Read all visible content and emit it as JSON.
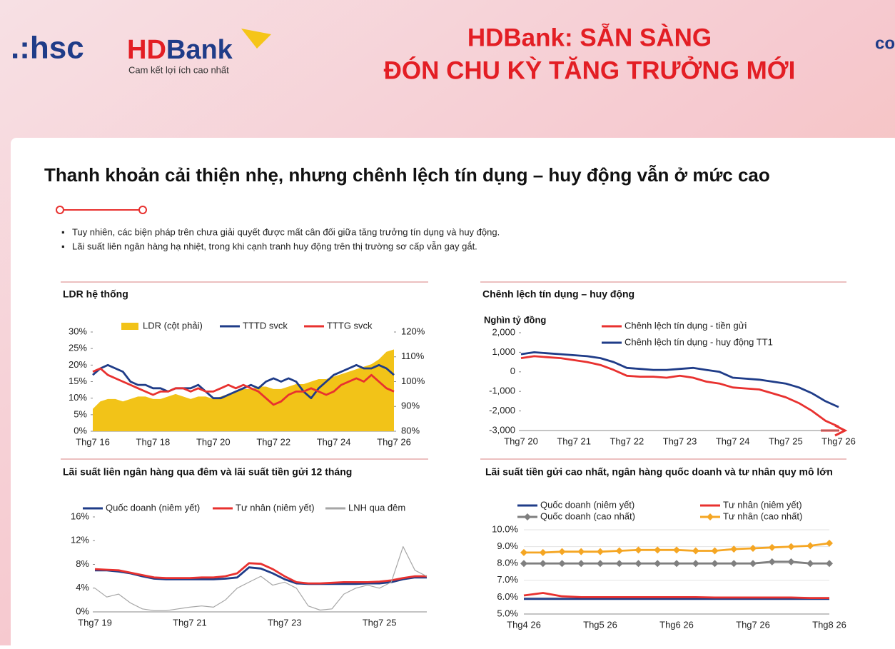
{
  "header": {
    "logo_hsc": ".:hsc",
    "logo_hd": "HD",
    "logo_bank": "Bank",
    "tagline": "Cam kết lợi ích cao nhất",
    "title_line1": "HDBank: SẴN SÀNG",
    "title_line2": "ĐÓN CHU KỲ TĂNG TRƯỞNG MỚI",
    "corner": "co"
  },
  "slide": {
    "title": "Thanh khoản cải thiện nhẹ, nhưng chênh lệch tín dụng – huy động vẫn ở mức cao",
    "bullets": [
      "Tuy nhiên, các biện pháp trên chưa giải quyết được mất cân đối giữa tăng trưởng tín dụng và huy động.",
      "Lãi suất liên ngân hàng hạ nhiệt, trong khi cạnh tranh huy động trên thị trường sơ cấp vẫn gay gắt."
    ]
  },
  "chart_data": [
    {
      "type": "combo",
      "title": "LDR hệ thống",
      "categories": [
        "Thg7 16",
        null,
        null,
        null,
        null,
        null,
        null,
        null,
        "Thg7 18",
        null,
        null,
        null,
        null,
        null,
        null,
        null,
        "Thg7 20",
        null,
        null,
        null,
        null,
        null,
        null,
        null,
        "Thg7 22",
        null,
        null,
        null,
        null,
        null,
        null,
        null,
        "Thg7 24",
        null,
        null,
        null,
        null,
        null,
        null,
        null,
        "Thg7 26"
      ],
      "ylim": [
        0,
        30
      ],
      "yticks": [
        {
          "value": 0,
          "label": "0%"
        },
        {
          "value": 5,
          "label": "5%"
        },
        {
          "value": 10,
          "label": "10%"
        },
        {
          "value": 15,
          "label": "15%"
        },
        {
          "value": 20,
          "label": "20%"
        },
        {
          "value": 25,
          "label": "25%"
        },
        {
          "value": 30,
          "label": "30%"
        }
      ],
      "y2lim": [
        80,
        120
      ],
      "y2ticks": [
        {
          "value": 80,
          "label": "80%"
        },
        {
          "value": 90,
          "label": "90%"
        },
        {
          "value": 100,
          "label": "100%"
        },
        {
          "value": 110,
          "label": "110%"
        },
        {
          "value": 120,
          "label": "120%"
        }
      ],
      "series": [
        {
          "name": "LDR (cột phải)",
          "type": "area",
          "axis": "y2",
          "color": "#f2c318",
          "values": [
            89,
            92,
            93,
            93,
            92,
            93,
            94,
            94,
            93,
            93,
            94,
            95,
            94,
            93,
            94,
            94,
            93,
            94,
            95,
            96,
            97,
            97,
            98,
            98,
            97,
            97,
            98,
            99,
            99,
            100,
            101,
            101,
            102,
            103,
            104,
            105,
            106,
            107,
            109,
            112,
            113
          ]
        },
        {
          "name": "TTTD svck",
          "type": "line",
          "color": "#1f3c88",
          "values": [
            17,
            19,
            20,
            19,
            18,
            15,
            14,
            14,
            13,
            13,
            12,
            13,
            13,
            13,
            14,
            12,
            10,
            10,
            11,
            12,
            13,
            14,
            13,
            15,
            16,
            15,
            16,
            15,
            12,
            10,
            13,
            15,
            17,
            18,
            19,
            20,
            19,
            19,
            20,
            19,
            17
          ]
        },
        {
          "name": "TTTG svck",
          "type": "line",
          "color": "#e8312f",
          "values": [
            18,
            19,
            17,
            16,
            15,
            14,
            13,
            12,
            11,
            12,
            12,
            13,
            13,
            12,
            13,
            12,
            12,
            13,
            14,
            13,
            14,
            13,
            12,
            10,
            8,
            9,
            11,
            12,
            12,
            13,
            12,
            11,
            12,
            14,
            15,
            16,
            15,
            17,
            15,
            13,
            12
          ]
        }
      ]
    },
    {
      "type": "line",
      "title": "Chênh lệch tín dụng – huy động",
      "ylabel": "Nghìn tỷ đồng",
      "categories": [
        "Thg7 20",
        null,
        null,
        null,
        "Thg7 21",
        null,
        null,
        null,
        "Thg7 22",
        null,
        null,
        null,
        "Thg7 23",
        null,
        null,
        null,
        "Thg7 24",
        null,
        null,
        null,
        "Thg7 25",
        null,
        null,
        null,
        "Thg7 26"
      ],
      "ylim": [
        -3000,
        2000
      ],
      "yticks": [
        {
          "value": -3000,
          "label": "-3,000"
        },
        {
          "value": -2000,
          "label": "-2,000"
        },
        {
          "value": -1000,
          "label": "-1,000"
        },
        0,
        {
          "value": 1000,
          "label": "1,000"
        },
        {
          "value": 2000,
          "label": "2,000"
        }
      ],
      "series": [
        {
          "name": "Chênh lệch tín dụng - tiền gửi",
          "color": "#e8312f",
          "values": [
            700,
            800,
            750,
            700,
            600,
            500,
            350,
            100,
            -200,
            -250,
            -250,
            -300,
            -200,
            -300,
            -500,
            -600,
            -800,
            -850,
            -900,
            -1100,
            -1300,
            -1600,
            -2000,
            -2500,
            -2800
          ]
        },
        {
          "name": "Chênh lệch tín dụng - huy động TT1",
          "color": "#1f3c88",
          "values": [
            900,
            1000,
            950,
            900,
            850,
            800,
            700,
            500,
            200,
            150,
            100,
            100,
            150,
            200,
            100,
            0,
            -300,
            -350,
            -400,
            -500,
            -600,
            -800,
            -1100,
            -1500,
            -1800
          ]
        }
      ]
    },
    {
      "type": "line",
      "title": "Lãi suất liên ngân hàng qua đêm và lãi suất tiền gửi 12 tháng",
      "categories": [
        "Thg7 19",
        null,
        null,
        null,
        null,
        null,
        null,
        null,
        "Thg7 21",
        null,
        null,
        null,
        null,
        null,
        null,
        null,
        "Thg7 23",
        null,
        null,
        null,
        null,
        null,
        null,
        null,
        "Thg7 25",
        null,
        null,
        null,
        null
      ],
      "ylim": [
        0,
        16
      ],
      "yticks": [
        {
          "value": 0,
          "label": "0%"
        },
        {
          "value": 4,
          "label": "4%"
        },
        {
          "value": 8,
          "label": "8%"
        },
        {
          "value": 12,
          "label": "12%"
        },
        {
          "value": 16,
          "label": "16%"
        }
      ],
      "series": [
        {
          "name": "Quốc doanh (niêm yết)",
          "color": "#1f3c88",
          "values": [
            7,
            7,
            6.8,
            6.5,
            6,
            5.6,
            5.5,
            5.5,
            5.5,
            5.5,
            5.5,
            5.6,
            5.8,
            7.5,
            7.3,
            6.5,
            5.5,
            4.8,
            4.7,
            4.7,
            4.7,
            4.7,
            4.7,
            4.8,
            4.8,
            5,
            5.5,
            5.8,
            5.8
          ]
        },
        {
          "name": "Tư nhân (niêm yết)",
          "color": "#e8312f",
          "values": [
            7.2,
            7.1,
            7,
            6.6,
            6.2,
            5.8,
            5.7,
            5.7,
            5.7,
            5.8,
            5.8,
            6,
            6.5,
            8.2,
            8.1,
            7.2,
            6,
            5,
            4.8,
            4.8,
            4.9,
            5,
            5,
            5,
            5.1,
            5.3,
            5.7,
            6,
            6
          ]
        },
        {
          "name": "LNH qua đêm",
          "color": "#a6a6a6",
          "values": [
            4,
            2.5,
            3,
            1.5,
            0.5,
            0.2,
            0.2,
            0.5,
            0.8,
            1,
            0.8,
            2,
            4,
            5,
            6,
            4.5,
            5,
            4,
            1,
            0.3,
            0.5,
            3,
            4,
            4.5,
            4,
            5,
            11,
            7,
            6
          ]
        }
      ]
    },
    {
      "type": "line",
      "title": "Lãi suất tiền gửi cao nhất, ngân hàng quốc doanh và tư nhân quy mô lớn",
      "grid": true,
      "categories": [
        "Thg4 26",
        null,
        null,
        null,
        "Thg5 26",
        null,
        null,
        null,
        "Thg6 26",
        null,
        null,
        null,
        "Thg7 26",
        null,
        null,
        null,
        "Thg8 26"
      ],
      "ylim": [
        5,
        10
      ],
      "yticks": [
        {
          "value": 5,
          "label": "5.0%"
        },
        {
          "value": 6,
          "label": "6.0%"
        },
        {
          "value": 7,
          "label": "7.0%"
        },
        {
          "value": 8,
          "label": "8.0%"
        },
        {
          "value": 9,
          "label": "9.0%"
        },
        {
          "value": 10,
          "label": "10.0%"
        }
      ],
      "series": [
        {
          "name": "Quốc doanh (niêm yết)",
          "color": "#1f3c88",
          "values": [
            5.9,
            5.9,
            5.9,
            5.9,
            5.9,
            5.9,
            5.9,
            5.9,
            5.9,
            5.9,
            5.9,
            5.9,
            5.9,
            5.9,
            5.9,
            5.9,
            5.9
          ]
        },
        {
          "name": "Tư nhân (niêm yết)",
          "color": "#e8312f",
          "values": [
            6.1,
            6.25,
            6.05,
            6,
            6,
            6,
            6,
            6,
            6,
            6,
            5.98,
            5.98,
            5.98,
            5.98,
            5.98,
            5.95,
            5.95
          ]
        },
        {
          "name": "Quốc doanh (cao nhất)",
          "color": "#7f7f7f",
          "marker": "diamond",
          "values": [
            8,
            8,
            8,
            8,
            8,
            8,
            8,
            8,
            8,
            8,
            8,
            8,
            8,
            8.1,
            8.1,
            8,
            8
          ]
        },
        {
          "name": "Tư nhân (cao nhất)",
          "color": "#f5a623",
          "marker": "diamond",
          "values": [
            8.65,
            8.65,
            8.7,
            8.7,
            8.7,
            8.75,
            8.8,
            8.8,
            8.8,
            8.75,
            8.75,
            8.85,
            8.9,
            8.95,
            9,
            9.05,
            9.2
          ]
        }
      ]
    }
  ]
}
